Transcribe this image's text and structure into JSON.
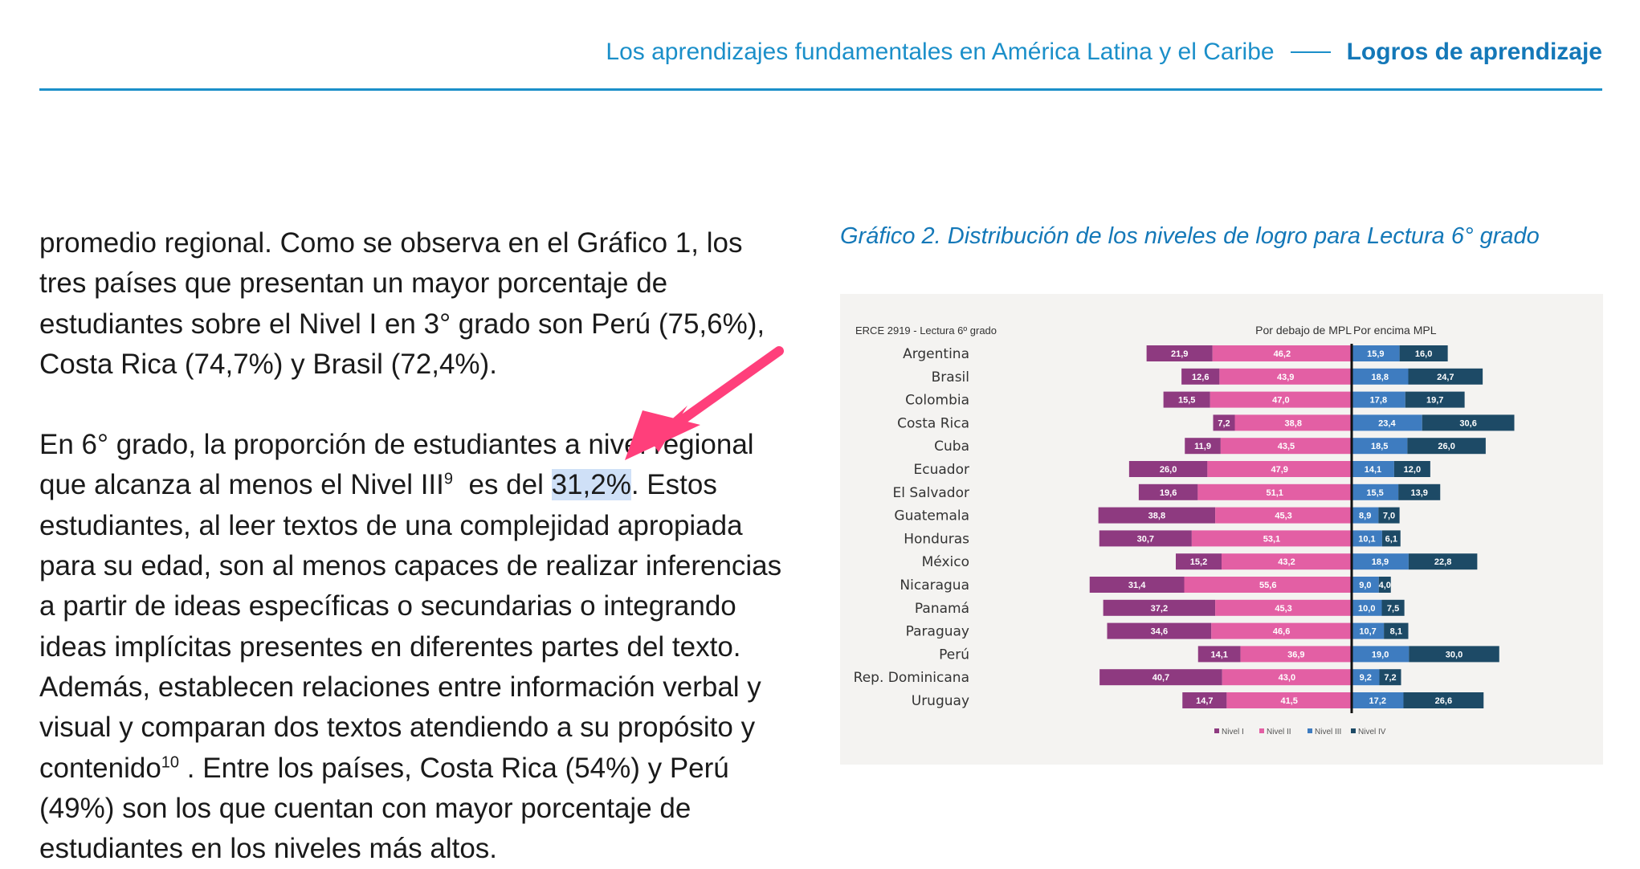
{
  "header": {
    "publication": "Los aprendizajes fundamentales en América Latina y el Caribe",
    "section": "Logros de aprendizaje"
  },
  "body": {
    "p1": "promedio regional. Como se observa en el Gráfico 1, los tres países que presentan un mayor porcentaje de estudiantes sobre el Nivel I en 3° grado son Perú (75,6%), Costa Rica (74,7%) y Brasil (72,4%).",
    "p2_a": "En 6° grado, la proporción de estudiantes a nivel regional que alcanza al menos el Nivel III",
    "p2_sup": "9",
    "p2_b": "  es del ",
    "p2_highlight": "31,2%",
    "p2_c": ". Estos estudiantes, al leer textos de una complejidad apropiada para su edad, son al menos capaces de realizar inferencias a partir de ideas específicas o secundarias o integrando ideas implícitas presentes en diferentes partes del texto. Además, establecen relaciones entre información verbal y visual y comparan dos textos atendiendo a su propósito y contenido",
    "p2_sup2": "10",
    "p2_d": " . Entre los países, Costa Rica (54%) y Perú (49%) son los que cuentan con mayor porcentaje de estudiantes en los niveles más altos."
  },
  "colors": {
    "accent": "#1b8fc9",
    "arrow": "#ff3f7b",
    "highlight": "#cfe0f7",
    "nivel1": "#8e3a80",
    "nivel2": "#e35fa4",
    "nivel3": "#3e7cc0",
    "nivel4": "#1d4a66"
  },
  "chart_title": "Gráfico 2. Distribución de los niveles de logro para Lectura 6° grado",
  "chart_data": {
    "type": "bar",
    "subtype": "diverging-stacked-horizontal",
    "source_label": "ERCE 2919 - Lectura 6º grado",
    "left_label": "Por debajo de MPL",
    "right_label": "Por encima MPL",
    "categories": [
      "Argentina",
      "Brasil",
      "Colombia",
      "Costa Rica",
      "Cuba",
      "Ecuador",
      "El Salvador",
      "Guatemala",
      "Honduras",
      "México",
      "Nicaragua",
      "Panamá",
      "Paraguay",
      "Perú",
      "Rep. Dominicana",
      "Uruguay"
    ],
    "series": [
      {
        "name": "Nivel I",
        "side": "left",
        "values": [
          21.9,
          12.6,
          15.5,
          7.2,
          11.9,
          26.0,
          19.6,
          38.8,
          30.7,
          15.2,
          31.4,
          37.2,
          34.6,
          14.1,
          40.7,
          14.7
        ],
        "labels": [
          "21,9",
          "12,6",
          "15,5",
          "7,2",
          "11,9",
          "26,0",
          "19,6",
          "38,8",
          "30,7",
          "15,2",
          "31,4",
          "37,2",
          "34,6",
          "14,1",
          "40,7",
          "14,7"
        ]
      },
      {
        "name": "Nivel II",
        "side": "left",
        "values": [
          46.2,
          43.9,
          47.0,
          38.8,
          43.5,
          47.9,
          51.1,
          45.3,
          53.1,
          43.2,
          55.6,
          45.3,
          46.6,
          36.9,
          43.0,
          41.5
        ],
        "labels": [
          "46,2",
          "43,9",
          "47,0",
          "38,8",
          "43,5",
          "47,9",
          "51,1",
          "45,3",
          "53,1",
          "43,2",
          "55,6",
          "45,3",
          "46,6",
          "36,9",
          "43,0",
          "41,5"
        ]
      },
      {
        "name": "Nivel III",
        "side": "right",
        "values": [
          15.9,
          18.8,
          17.8,
          23.4,
          18.5,
          14.1,
          15.5,
          8.9,
          10.1,
          18.9,
          9.0,
          10.0,
          10.7,
          19.0,
          9.2,
          17.2
        ],
        "labels": [
          "15,9",
          "18,8",
          "17,8",
          "23,4",
          "18,5",
          "14,1",
          "15,5",
          "8,9",
          "10,1",
          "18,9",
          "9,0",
          "10,0",
          "10,7",
          "19,0",
          "9,2",
          "17,2"
        ]
      },
      {
        "name": "Nivel IV",
        "side": "right",
        "values": [
          16.0,
          24.7,
          19.7,
          30.6,
          26.0,
          12.0,
          13.9,
          7.0,
          6.1,
          22.8,
          4.0,
          7.5,
          8.1,
          30.0,
          7.2,
          26.6
        ],
        "labels": [
          "16,0",
          "24,7",
          "19,7",
          "30,6",
          "26,0",
          "12,0",
          "13,9",
          "7,0",
          "6,1",
          "22,8",
          "4,0",
          "7,5",
          "8,1",
          "30,0",
          "7,2",
          "26,6"
        ]
      }
    ],
    "legend": [
      "Nivel I",
      "Nivel II",
      "Nivel III",
      "Nivel IV"
    ],
    "legend_position": "bottom",
    "grid": false
  }
}
